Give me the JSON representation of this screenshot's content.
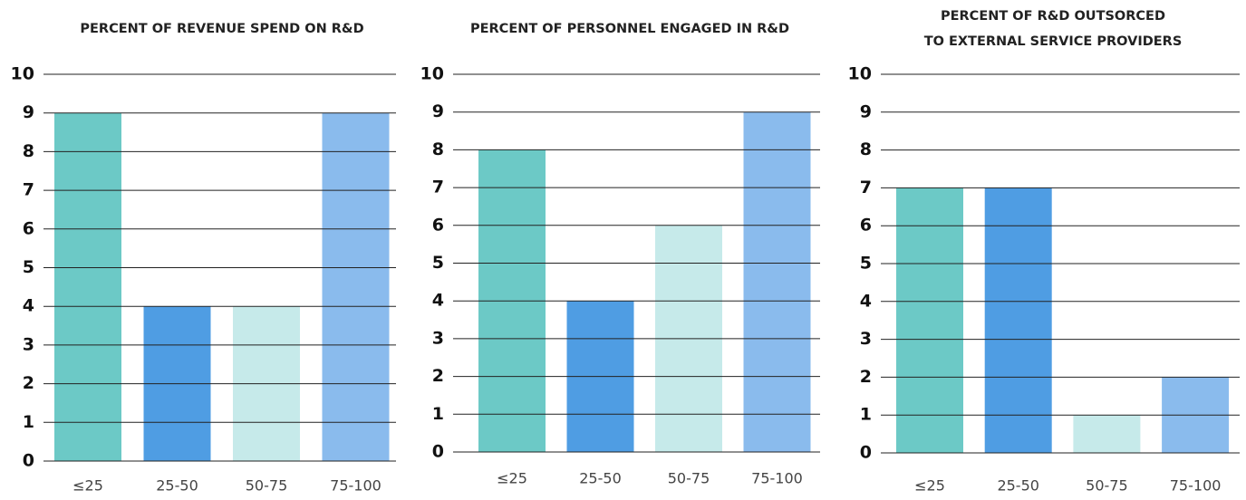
{
  "chart_data": [
    {
      "type": "bar",
      "title": "PERCENT OF REVENUE SPEND ON R&D",
      "categories": [
        "≤25",
        "25-50",
        "50-75",
        "75-100"
      ],
      "values": [
        9,
        4,
        4,
        9
      ],
      "colors": [
        "#6cc9c6",
        "#4f9de3",
        "#c6eaea",
        "#8abbed"
      ],
      "ylim": [
        0,
        10
      ],
      "yticks": [
        0,
        1,
        2,
        3,
        4,
        5,
        6,
        7,
        8,
        9,
        10
      ],
      "grid": true
    },
    {
      "type": "bar",
      "title": "PERCENT OF PERSONNEL ENGAGED IN R&D",
      "categories": [
        "≤25",
        "25-50",
        "50-75",
        "75-100"
      ],
      "values": [
        8,
        4,
        6,
        9
      ],
      "colors": [
        "#6cc9c6",
        "#4f9de3",
        "#c6eaea",
        "#8abbed"
      ],
      "ylim": [
        0,
        10
      ],
      "yticks": [
        0,
        1,
        2,
        3,
        4,
        5,
        6,
        7,
        8,
        9,
        10
      ],
      "grid": true
    },
    {
      "type": "bar",
      "title": [
        "PERCENT OF R&D OUTSORCED",
        "TO EXTERNAL SERVICE PROVIDERS"
      ],
      "categories": [
        "≤25",
        "25-50",
        "50-75",
        "75-100"
      ],
      "values": [
        7,
        7,
        1,
        2
      ],
      "colors": [
        "#6cc9c6",
        "#4f9de3",
        "#c6eaea",
        "#8abbed"
      ],
      "ylim": [
        0,
        10
      ],
      "yticks": [
        0,
        1,
        2,
        3,
        4,
        5,
        6,
        7,
        8,
        9,
        10
      ],
      "grid": true
    }
  ]
}
